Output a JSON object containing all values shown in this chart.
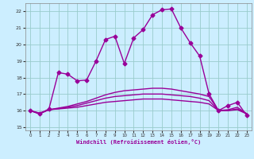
{
  "xlabel": "Windchill (Refroidissement éolien,°C)",
  "xlim": [
    -0.5,
    23.5
  ],
  "ylim": [
    14.8,
    22.5
  ],
  "yticks": [
    15,
    16,
    17,
    18,
    19,
    20,
    21,
    22
  ],
  "xticks": [
    0,
    1,
    2,
    3,
    4,
    5,
    6,
    7,
    8,
    9,
    10,
    11,
    12,
    13,
    14,
    15,
    16,
    17,
    18,
    19,
    20,
    21,
    22,
    23
  ],
  "bg_color": "#cceeff",
  "line_color": "#990099",
  "grid_color": "#99cccc",
  "lines": [
    {
      "x": [
        0,
        1,
        2,
        3,
        4,
        5,
        6,
        7,
        8,
        9,
        10,
        11,
        12,
        13,
        14,
        15,
        16,
        17,
        18,
        19,
        20,
        21,
        22,
        23
      ],
      "y": [
        16.0,
        15.8,
        16.1,
        18.3,
        18.2,
        17.8,
        17.85,
        19.0,
        20.3,
        20.5,
        18.85,
        20.4,
        20.9,
        21.8,
        22.1,
        22.15,
        21.0,
        20.1,
        19.3,
        17.0,
        16.0,
        16.3,
        16.5,
        15.7
      ],
      "marker": "D",
      "markersize": 2.5,
      "linewidth": 1.0
    },
    {
      "x": [
        0,
        1,
        2,
        3,
        4,
        5,
        6,
        7,
        8,
        9,
        10,
        11,
        12,
        13,
        14,
        15,
        16,
        17,
        18,
        19,
        20,
        21,
        22,
        23
      ],
      "y": [
        16.0,
        15.85,
        16.05,
        16.1,
        16.15,
        16.2,
        16.3,
        16.4,
        16.5,
        16.55,
        16.6,
        16.65,
        16.7,
        16.7,
        16.7,
        16.65,
        16.6,
        16.55,
        16.5,
        16.4,
        16.0,
        16.0,
        16.05,
        15.8
      ],
      "marker": null,
      "markersize": 0,
      "linewidth": 1.0
    },
    {
      "x": [
        0,
        1,
        2,
        3,
        4,
        5,
        6,
        7,
        8,
        9,
        10,
        11,
        12,
        13,
        14,
        15,
        16,
        17,
        18,
        19,
        20,
        21,
        22,
        23
      ],
      "y": [
        16.0,
        15.82,
        16.05,
        16.12,
        16.2,
        16.3,
        16.45,
        16.6,
        16.75,
        16.85,
        16.9,
        16.95,
        17.0,
        17.0,
        17.0,
        16.95,
        16.9,
        16.85,
        16.75,
        16.6,
        16.0,
        16.0,
        16.1,
        15.82
      ],
      "marker": null,
      "markersize": 0,
      "linewidth": 1.0
    },
    {
      "x": [
        0,
        1,
        2,
        3,
        4,
        5,
        6,
        7,
        8,
        9,
        10,
        11,
        12,
        13,
        14,
        15,
        16,
        17,
        18,
        19,
        20,
        21,
        22,
        23
      ],
      "y": [
        16.0,
        15.8,
        16.05,
        16.15,
        16.25,
        16.4,
        16.55,
        16.75,
        16.95,
        17.1,
        17.2,
        17.25,
        17.3,
        17.35,
        17.35,
        17.3,
        17.2,
        17.1,
        17.0,
        16.85,
        16.0,
        16.05,
        16.2,
        15.8
      ],
      "marker": null,
      "markersize": 0,
      "linewidth": 1.0
    }
  ]
}
